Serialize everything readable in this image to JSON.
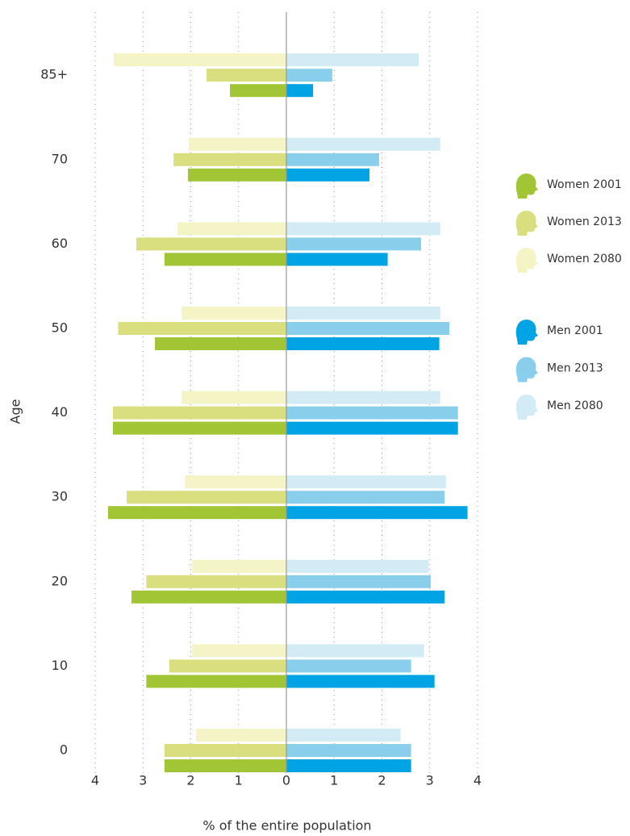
{
  "chart_data": {
    "type": "bar",
    "orientation": "horizontal",
    "xlabel": "% of the entire population",
    "ylabel": "Age",
    "categories": [
      "0",
      "10",
      "20",
      "30",
      "40",
      "50",
      "60",
      "70",
      "85+"
    ],
    "xlim": [
      -4,
      4
    ],
    "xticks": [
      {
        "value": -4,
        "label": "4"
      },
      {
        "value": -3,
        "label": "3"
      },
      {
        "value": -2,
        "label": "2"
      },
      {
        "value": -1,
        "label": "1"
      },
      0,
      1,
      2,
      3,
      4
    ],
    "grid": true,
    "legend": "right",
    "series": [
      {
        "name": "Women 2001",
        "color": "#a2c535",
        "values": [
          -2.55,
          -2.93,
          -3.24,
          -3.73,
          -3.63,
          -2.75,
          -2.55,
          -2.06,
          -1.18
        ]
      },
      {
        "name": "Women 2013",
        "color": "#d9df7e",
        "values": [
          -2.55,
          -2.45,
          -2.93,
          -3.34,
          -3.63,
          -3.52,
          -3.14,
          -2.36,
          -1.67
        ]
      },
      {
        "name": "Women 2080",
        "color": "#f4f4c7",
        "values": [
          -1.89,
          -1.97,
          -1.97,
          -2.12,
          -2.19,
          -2.19,
          -2.28,
          -2.04,
          -3.61
        ]
      },
      {
        "name": "Men 2001",
        "color": "#00a4e4",
        "values": [
          2.61,
          3.1,
          3.31,
          3.79,
          3.59,
          3.2,
          2.12,
          1.74,
          0.56
        ]
      },
      {
        "name": "Men 2013",
        "color": "#89cfec",
        "values": [
          2.61,
          2.61,
          3.02,
          3.31,
          3.59,
          3.41,
          2.82,
          1.94,
          0.96
        ]
      },
      {
        "name": "Men 2080",
        "color": "#d2ebf5",
        "values": [
          2.39,
          2.88,
          2.98,
          3.34,
          3.22,
          3.22,
          3.22,
          3.22,
          2.77
        ]
      }
    ]
  }
}
